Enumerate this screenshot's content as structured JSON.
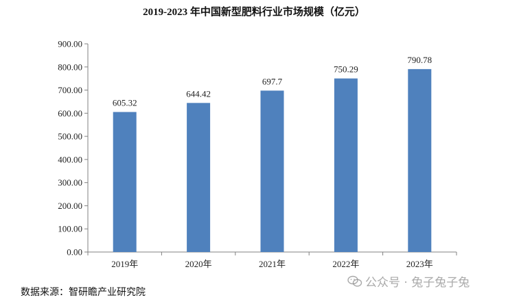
{
  "chart_data": {
    "type": "bar",
    "title": "2019-2023 年中国新型肥料行业市场规模（亿元）",
    "categories": [
      "2019年",
      "2020年",
      "2021年",
      "2022年",
      "2023年"
    ],
    "values": [
      605.32,
      644.42,
      697.7,
      750.29,
      790.78
    ],
    "value_labels": [
      "605.32",
      "644.42",
      "697.7",
      "750.29",
      "790.78"
    ],
    "ylim": [
      0,
      900
    ],
    "yticks": [
      "0.00",
      "100.00",
      "200.00",
      "300.00",
      "400.00",
      "500.00",
      "600.00",
      "700.00",
      "800.00",
      "900.00"
    ],
    "xlabel": "",
    "ylabel": "",
    "grid": false,
    "legend": "none",
    "bar_color": "#4f81bd"
  },
  "source": "数据来源：智研瞻产业研究院",
  "watermark": "公众号 · 兔子兔子兔"
}
